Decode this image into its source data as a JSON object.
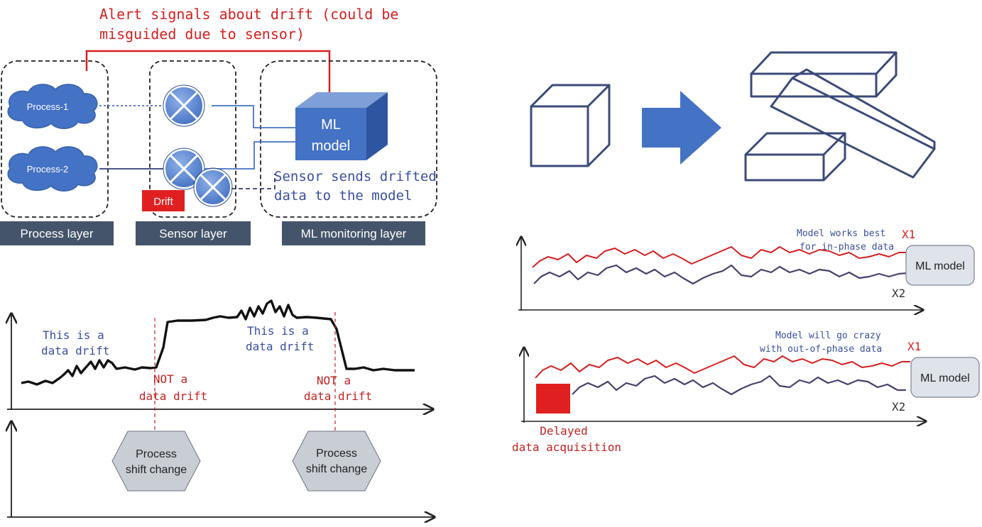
{
  "colors": {
    "blue": "#4472c4",
    "navy": "#2f3f6b",
    "red": "#e02020",
    "dark_red": "#c42222",
    "label_bg": "#44546a",
    "hex_fill": "#c9cdd4",
    "ml_box_fill": "#dfe3ea",
    "process_line": "#9a3b3b",
    "sensor_line": "#4a3e6e"
  },
  "arch": {
    "alert_line1": "Alert signals about drift (could be",
    "alert_line2": "misguided due to sensor)",
    "process_1": "Process-1",
    "process_2": "Process-2",
    "ml_line1": "ML",
    "ml_line2": "model",
    "drift_badge": "Drift",
    "sensor_note_line1": "Sensor sends drifted",
    "sensor_note_line2": "data to the model",
    "layer_labels": [
      "Process layer",
      "Sensor layer",
      "ML monitoring layer"
    ]
  },
  "drift_chart": {
    "left_note_line1": "This is a",
    "left_note_line2": "data drift",
    "right_note_line1": "This is a",
    "right_note_line2": "data drift",
    "not_drift_1_line1": "NOT a",
    "not_drift_1_line2": "data drift",
    "not_drift_2_line1": "NOT a",
    "not_drift_2_line2": "data drift",
    "shift_1_line1": "Process",
    "shift_1_line2": "shift change",
    "shift_2_line1": "Process",
    "shift_2_line2": "shift change"
  },
  "phase_top": {
    "note_line1": "Model works best",
    "note_line2": "for in-phase data",
    "x1_label": "X1",
    "x2_label": "X2",
    "model_label": "ML model"
  },
  "phase_bottom": {
    "note_line1": "Model will go crazy",
    "note_line2": "with out-of-phase data",
    "x1_label": "X1",
    "x2_label": "X2",
    "model_label": "ML model",
    "delay_line1": "Delayed",
    "delay_line2": "data acquisition"
  }
}
